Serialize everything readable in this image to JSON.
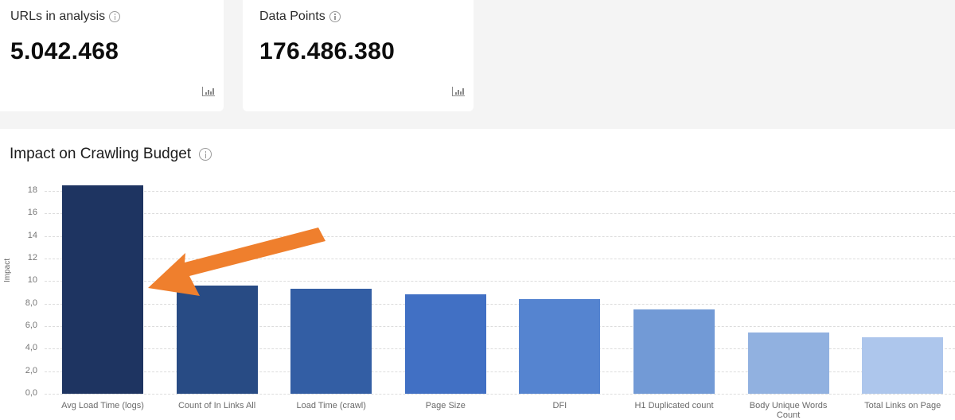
{
  "cards": [
    {
      "label": "URLs in analysis",
      "value": "5.042.468",
      "info_icon": "info-icon",
      "action_icon": "bar-chart-icon"
    },
    {
      "label": "Data Points",
      "value": "176.486.380",
      "info_icon": "info-icon",
      "action_icon": "bar-chart-icon"
    }
  ],
  "section": {
    "title": "Impact on Crawling Budget",
    "info_icon": "info-icon"
  },
  "annotation": {
    "type": "arrow",
    "color": "#ef7f2d",
    "points_to": "Avg Load Time (logs)"
  },
  "chart_data": {
    "type": "bar",
    "title": "Impact on Crawling Budget",
    "xlabel": "",
    "ylabel": "Impact",
    "ylim": [
      0,
      18
    ],
    "yticks": [
      "0,0",
      "2,0",
      "4,0",
      "6,0",
      "8,0",
      "10",
      "12",
      "14",
      "16",
      "18"
    ],
    "grid": true,
    "legend": "none",
    "categories": [
      "Avg Load Time (logs)",
      "Count of In Links All",
      "Load Time (crawl)",
      "Page Size",
      "DFI",
      "H1 Duplicated count",
      "Body Unique Words Count",
      "Total Links on Page"
    ],
    "values": [
      18.5,
      9.6,
      9.3,
      8.8,
      8.4,
      7.5,
      5.4,
      5.0
    ],
    "colors": [
      "#1e3461",
      "#284b84",
      "#335ea4",
      "#4170c4",
      "#5584d0",
      "#729ad6",
      "#91b1e0",
      "#adc6ec"
    ]
  }
}
